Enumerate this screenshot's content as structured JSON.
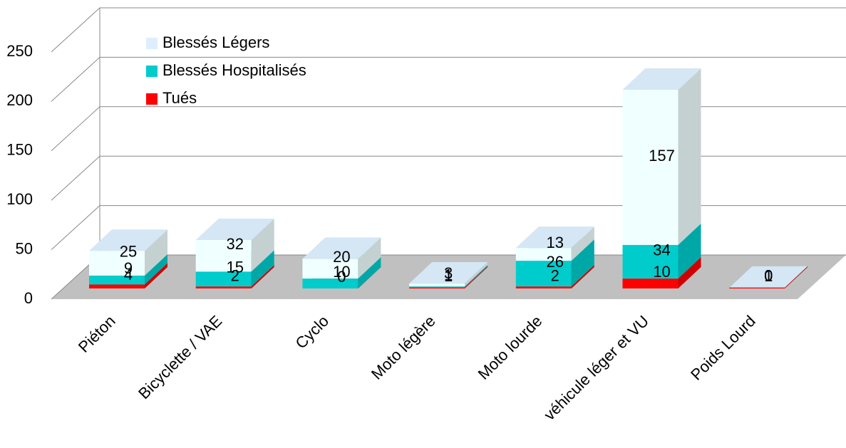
{
  "chart_data": {
    "type": "bar3d_stacked",
    "categories": [
      "Piéton",
      "Bicyclette / VAE",
      "Cyclo",
      "Moto légère",
      "Moto lourde",
      "véhicule léger et VU",
      "Poids Lourd"
    ],
    "series": [
      {
        "name": "Tués",
        "color": "#ff0000",
        "values": [
          4,
          2,
          0,
          1,
          2,
          10,
          1
        ]
      },
      {
        "name": "Blessés Hospitalisés",
        "color": "#00cccc",
        "values": [
          9,
          15,
          10,
          1,
          26,
          34,
          0
        ]
      },
      {
        "name": "Blessés Légers",
        "color": "#f0ffff",
        "values": [
          25,
          32,
          20,
          3,
          13,
          157,
          0
        ]
      }
    ],
    "ylim": [
      0,
      250
    ],
    "yticks": [
      0,
      50,
      100,
      150,
      200,
      250
    ],
    "grid": true
  }
}
